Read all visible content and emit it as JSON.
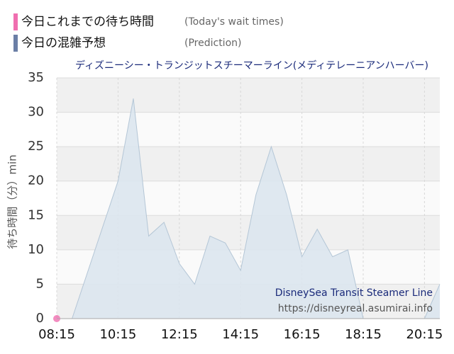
{
  "chart_data": {
    "type": "area",
    "title": "ディズニーシー・トランジットスチーマーライン(メディテレーニアンハーバー)",
    "ylabel": "待ち時間（分）min",
    "annotations": [
      "DisneySea Transit Steamer Line",
      "https://disneyreal.asumirai.info"
    ],
    "series": [
      {
        "name": "今日これまでの待ち時間",
        "note": "(Today's wait times)",
        "color": "#f06fb0",
        "kind": "point",
        "x": [
          495
        ],
        "values": [
          0
        ]
      },
      {
        "name": "今日の混雑予想",
        "note": "(Prediction)",
        "color": "#6b7fa6",
        "fill": "#dbe5ee",
        "line": "#b4c6d6",
        "kind": "area",
        "x": [
          495,
          525,
          615,
          645,
          675,
          705,
          735,
          765,
          795,
          825,
          855,
          885,
          915,
          945,
          975,
          1005,
          1035,
          1065,
          1095,
          1215,
          1245
        ],
        "values": [
          0,
          0,
          20,
          32,
          12,
          14,
          8,
          5,
          12,
          11,
          7,
          18,
          25,
          18,
          9,
          13,
          9,
          10,
          0,
          0,
          5
        ]
      }
    ],
    "xlim": [
      495,
      1245
    ],
    "xticks": [
      {
        "value": 495,
        "label": "08:15"
      },
      {
        "value": 615,
        "label": "10:15"
      },
      {
        "value": 735,
        "label": "12:15"
      },
      {
        "value": 855,
        "label": "14:15"
      },
      {
        "value": 975,
        "label": "16:15"
      },
      {
        "value": 1095,
        "label": "18:15"
      },
      {
        "value": 1215,
        "label": "20:15"
      }
    ],
    "ylim": [
      0,
      35
    ],
    "yticks": [
      0,
      5,
      10,
      15,
      20,
      25,
      30,
      35
    ],
    "grid": true
  }
}
